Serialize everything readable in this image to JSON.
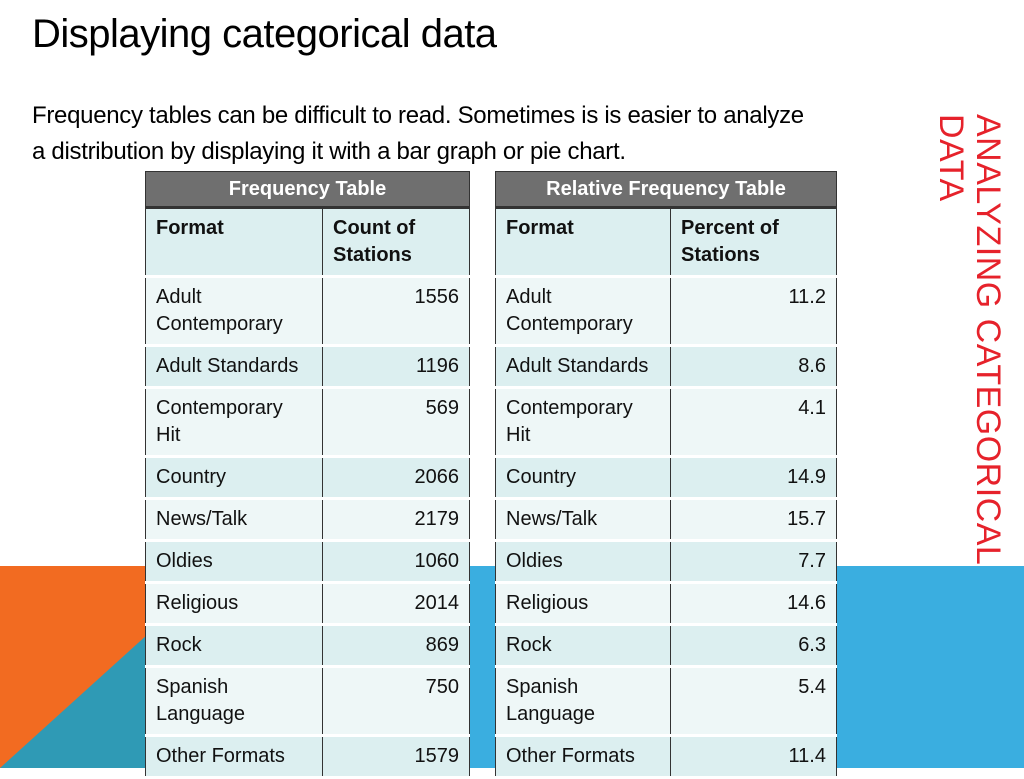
{
  "colors": {
    "orange": "#f26b21",
    "teal": "#2f9ab5",
    "blue": "#3aaee0",
    "accent_red": "#e6222b",
    "header_gray": "#6f6f6f"
  },
  "slide": {
    "title": "Displaying categorical data",
    "body": "Frequency tables can be difficult to read.  Sometimes is is easier to analyze a distribution by displaying it with a bar graph or pie chart.",
    "side_title": "Analyzing Categorical Data"
  },
  "freq_table": {
    "caption": "Frequency Table",
    "headers": [
      "Format",
      "Count of Stations"
    ],
    "rows": [
      {
        "format": "Adult Contemporary",
        "value": "1556"
      },
      {
        "format": "Adult Standards",
        "value": "1196"
      },
      {
        "format": "Contemporary Hit",
        "value": "569"
      },
      {
        "format": "Country",
        "value": "2066"
      },
      {
        "format": "News/Talk",
        "value": "2179"
      },
      {
        "format": "Oldies",
        "value": "1060"
      },
      {
        "format": "Religious",
        "value": "2014"
      },
      {
        "format": "Rock",
        "value": "869"
      },
      {
        "format": "Spanish Language",
        "value": "750"
      },
      {
        "format": "Other Formats",
        "value": "1579"
      }
    ]
  },
  "rel_table": {
    "caption": "Relative Frequency Table",
    "headers": [
      "Format",
      "Percent of Stations"
    ],
    "rows": [
      {
        "format": "Adult Contemporary",
        "value": "11.2"
      },
      {
        "format": "Adult Standards",
        "value": "8.6"
      },
      {
        "format": "Contemporary Hit",
        "value": "4.1"
      },
      {
        "format": "Country",
        "value": "14.9"
      },
      {
        "format": "News/Talk",
        "value": "15.7"
      },
      {
        "format": "Oldies",
        "value": "7.7"
      },
      {
        "format": "Religious",
        "value": "14.6"
      },
      {
        "format": "Rock",
        "value": "6.3"
      },
      {
        "format": "Spanish Language",
        "value": "5.4"
      },
      {
        "format": "Other Formats",
        "value": "11.4"
      }
    ]
  }
}
